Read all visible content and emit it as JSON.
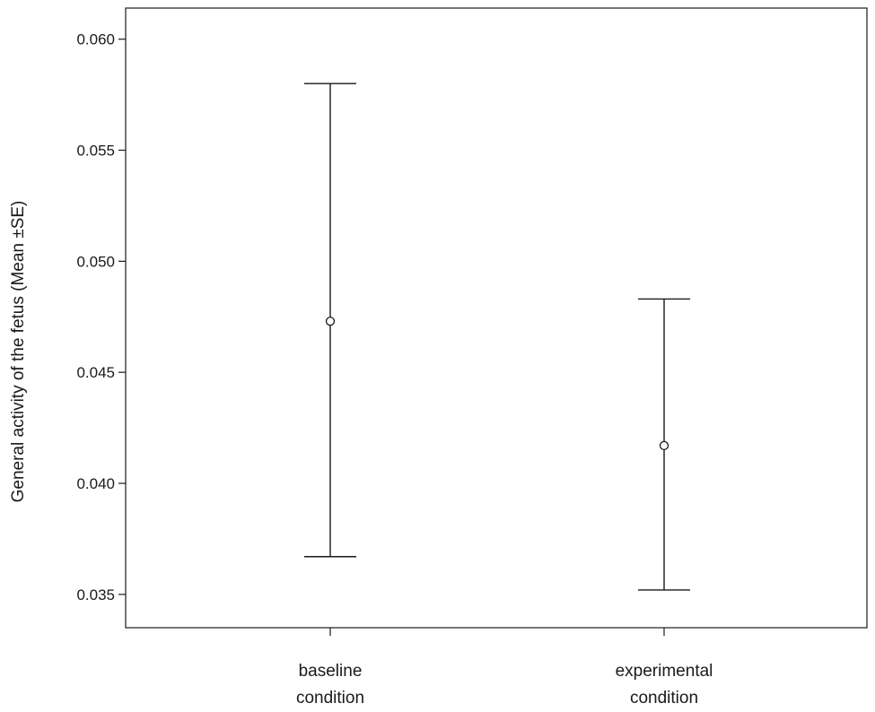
{
  "chart_data": {
    "type": "errorbar",
    "ylabel": "General activity of the fetus (Mean ±SE)",
    "xlabel": "",
    "ylim": [
      0.0335,
      0.0614
    ],
    "yticks": [
      {
        "value": 0.06,
        "label": "0.060"
      },
      {
        "value": 0.055,
        "label": "0.055"
      },
      {
        "value": 0.05,
        "label": "0.050"
      },
      {
        "value": 0.045,
        "label": "0.045"
      },
      {
        "value": 0.04,
        "label": "0.040"
      },
      {
        "value": 0.035,
        "label": "0.035"
      }
    ],
    "categories": [
      {
        "lines": [
          "baseline",
          "condition"
        ],
        "mean": 0.0473,
        "lower": 0.0367,
        "upper": 0.058
      },
      {
        "lines": [
          "experimental",
          "condition"
        ],
        "mean": 0.0417,
        "lower": 0.0352,
        "upper": 0.0483
      }
    ],
    "grid": false,
    "legend": "none",
    "color": "#1a1a1a"
  }
}
